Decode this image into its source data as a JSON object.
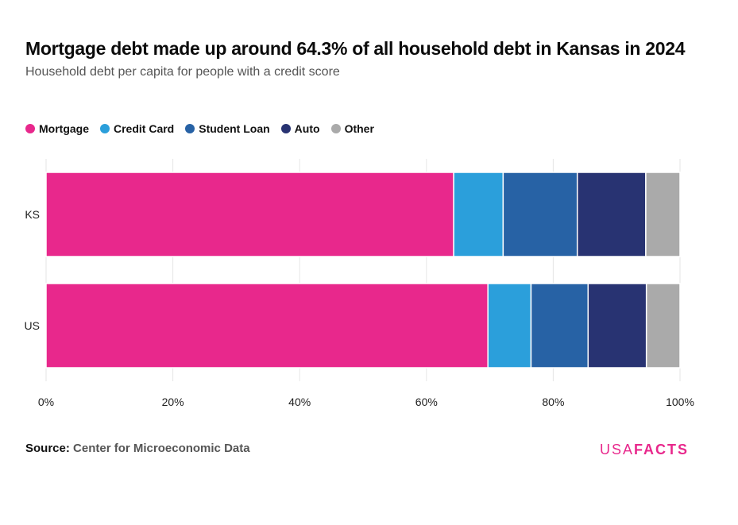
{
  "title": "Mortgage debt made up around 64.3% of all household debt in Kansas in 2024",
  "subtitle": "Household debt per capita for people with a credit score",
  "source": {
    "label": "Source:",
    "text": "Center for Microeconomic Data"
  },
  "brand": {
    "usa": "USA",
    "facts": "FACTS"
  },
  "chart_data": {
    "type": "bar",
    "orientation": "horizontal",
    "stacked": true,
    "categories": [
      "KS",
      "US"
    ],
    "series": [
      {
        "name": "Mortgage",
        "color": "#e8288c",
        "values": [
          64.3,
          69.7
        ]
      },
      {
        "name": "Credit Card",
        "color": "#2b9fdb",
        "values": [
          7.8,
          6.8
        ]
      },
      {
        "name": "Student Loan",
        "color": "#2762a5",
        "values": [
          11.7,
          9.0
        ]
      },
      {
        "name": "Auto",
        "color": "#283372",
        "values": [
          10.8,
          9.2
        ]
      },
      {
        "name": "Other",
        "color": "#aaaaaa",
        "values": [
          5.4,
          5.3
        ]
      }
    ],
    "xlim": [
      0,
      100
    ],
    "xticks": [
      0,
      20,
      40,
      60,
      80,
      100
    ],
    "xtick_labels": [
      "0%",
      "20%",
      "40%",
      "60%",
      "80%",
      "100%"
    ],
    "grid": true,
    "legend": "top-left"
  }
}
